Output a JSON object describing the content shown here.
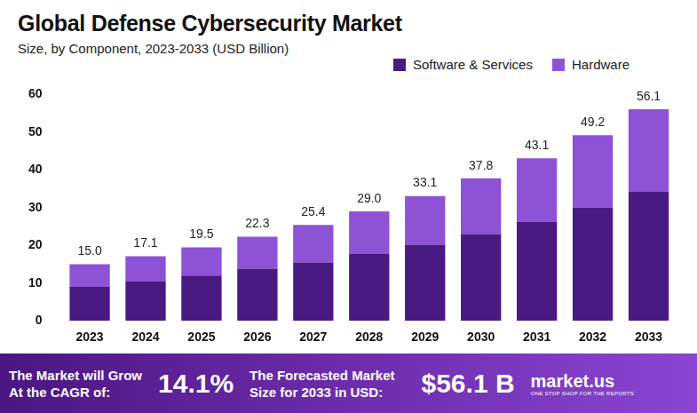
{
  "chart_data": {
    "type": "bar",
    "title": "Global Defense Cybersecurity Market",
    "subtitle": "Size, by Component, 2023-2033 (USD Billion)",
    "categories": [
      "2023",
      "2024",
      "2025",
      "2026",
      "2027",
      "2028",
      "2029",
      "2030",
      "2031",
      "2032",
      "2033"
    ],
    "series": [
      {
        "name": "Software & Services",
        "color": "#4a1a83",
        "values": [
          9.0,
          10.5,
          12.0,
          13.8,
          15.5,
          17.7,
          20.2,
          23.0,
          26.3,
          30.0,
          34.2
        ]
      },
      {
        "name": "Hardware",
        "color": "#8e52d6",
        "values": [
          6.0,
          6.6,
          7.5,
          8.5,
          9.9,
          11.3,
          12.9,
          14.8,
          16.8,
          19.2,
          21.9
        ]
      }
    ],
    "totals": [
      15.0,
      17.1,
      19.5,
      22.3,
      25.4,
      29.0,
      33.1,
      37.8,
      43.1,
      49.2,
      56.1
    ],
    "total_labels": [
      "15.0",
      "17.1",
      "19.5",
      "22.3",
      "25.4",
      "29.0",
      "33.1",
      "37.8",
      "43.1",
      "49.2",
      "56.1"
    ],
    "stacked": true,
    "ylim": [
      0,
      60
    ],
    "yticks": [
      0,
      10,
      20,
      30,
      40,
      50,
      60
    ],
    "grid": false,
    "legend": "top-right"
  },
  "footer": {
    "cagr_text": [
      "The Market will Grow",
      "At the CAGR of:"
    ],
    "cagr_value": "14.1%",
    "forecast_text": [
      "The Forecasted Market",
      "Size for 2033 in USD:"
    ],
    "forecast_value": "$56.1 B",
    "logo": "market.us",
    "logo_tagline": "ONE STOP SHOP FOR THE REPORTS"
  }
}
